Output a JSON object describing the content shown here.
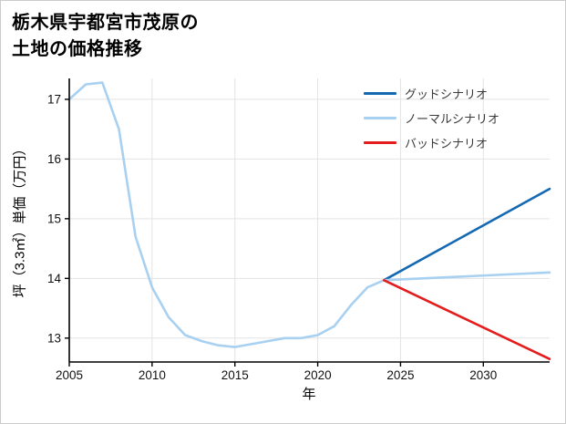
{
  "page": {
    "title_line1": "栃木県宇都宮市茂原の",
    "title_line2": "土地の価格推移"
  },
  "chart_data": {
    "type": "line",
    "title": "栃木県宇都宮市茂原の土地の価格推移",
    "xlabel": "年",
    "ylabel": "坪（3.3㎡）単価（万円）",
    "xlim": [
      2005,
      2034
    ],
    "ylim": [
      12.6,
      17.35
    ],
    "xticks": [
      2005,
      2010,
      2015,
      2020,
      2025,
      2030
    ],
    "yticks": [
      13,
      14,
      15,
      16,
      17
    ],
    "grid": true,
    "legend_position": "top-right",
    "colors": {
      "grid": "#e3e3e3",
      "axis": "#000000",
      "tick_label": "#111111",
      "good": "#1469b3",
      "normal": "#a8d0f0",
      "bad": "#e41c1c"
    },
    "legend": [
      {
        "label": "グッドシナリオ",
        "color": "#1469b3"
      },
      {
        "label": "ノーマルシナリオ",
        "color": "#a8d0f0"
      },
      {
        "label": "バッドシナリオ",
        "color": "#e41c1c"
      }
    ],
    "series": [
      {
        "name": "history",
        "color": "#a8d0f0",
        "x": [
          2005,
          2006,
          2007,
          2008,
          2009,
          2010,
          2011,
          2012,
          2013,
          2014,
          2015,
          2016,
          2017,
          2018,
          2019,
          2020,
          2021,
          2022,
          2023,
          2024
        ],
        "values": [
          17.0,
          17.25,
          17.28,
          16.5,
          14.7,
          13.85,
          13.35,
          13.05,
          12.95,
          12.88,
          12.85,
          12.9,
          12.95,
          13.0,
          13.0,
          13.05,
          13.2,
          13.55,
          13.85,
          13.97
        ]
      },
      {
        "name": "good-scenario",
        "color": "#1469b3",
        "x": [
          2024,
          2034
        ],
        "values": [
          13.97,
          15.5
        ]
      },
      {
        "name": "normal-scenario",
        "color": "#a8d0f0",
        "x": [
          2024,
          2034
        ],
        "values": [
          13.97,
          14.1
        ]
      },
      {
        "name": "bad-scenario",
        "color": "#e41c1c",
        "x": [
          2024,
          2034
        ],
        "values": [
          13.97,
          12.65
        ]
      }
    ]
  }
}
